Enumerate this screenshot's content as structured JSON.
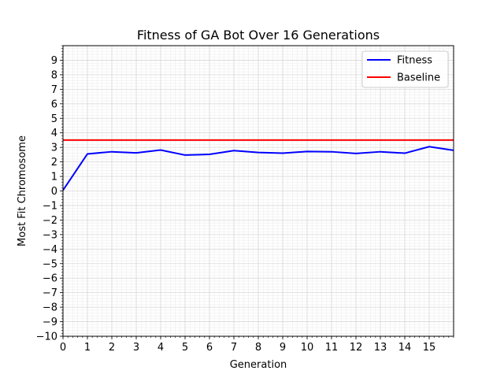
{
  "chart_data": {
    "type": "line",
    "title": "Fitness of GA Bot Over 16 Generations",
    "xlabel": "Generation",
    "ylabel": "Most Fit Chromosome",
    "xlim": [
      0,
      16
    ],
    "ylim": [
      -10,
      10
    ],
    "x_ticks": [
      0,
      1,
      2,
      3,
      4,
      5,
      6,
      7,
      8,
      9,
      10,
      11,
      12,
      13,
      14,
      15
    ],
    "x_tick_labels": [
      "0",
      "1",
      "2",
      "3",
      "4",
      "5",
      "6",
      "7",
      "8",
      "9",
      "10",
      "11",
      "12",
      "13",
      "14",
      "15"
    ],
    "y_ticks": [
      -10,
      -9,
      -8,
      -7,
      -6,
      -5,
      -4,
      -3,
      -2,
      -1,
      0,
      1,
      2,
      3,
      4,
      5,
      6,
      7,
      8,
      9
    ],
    "y_tick_labels": [
      "−10",
      "−9",
      "−8",
      "−7",
      "−6",
      "−5",
      "−4",
      "−3",
      "−2",
      "−1",
      "0",
      "1",
      "2",
      "3",
      "4",
      "5",
      "6",
      "7",
      "8",
      "9"
    ],
    "grid": true,
    "minor_grid": true,
    "legend_position": "top-right",
    "series": [
      {
        "name": "Fitness",
        "color": "#0000ff",
        "x": [
          0,
          1,
          2,
          3,
          4,
          5,
          6,
          7,
          8,
          9,
          10,
          11,
          12,
          13,
          14,
          15,
          16
        ],
        "y": [
          0.05,
          2.55,
          2.7,
          2.62,
          2.82,
          2.47,
          2.52,
          2.78,
          2.65,
          2.6,
          2.72,
          2.7,
          2.58,
          2.7,
          2.6,
          3.05,
          2.8
        ]
      },
      {
        "name": "Baseline",
        "color": "#ff0000",
        "x": [
          0,
          16
        ],
        "y": [
          3.5,
          3.5
        ]
      }
    ]
  }
}
